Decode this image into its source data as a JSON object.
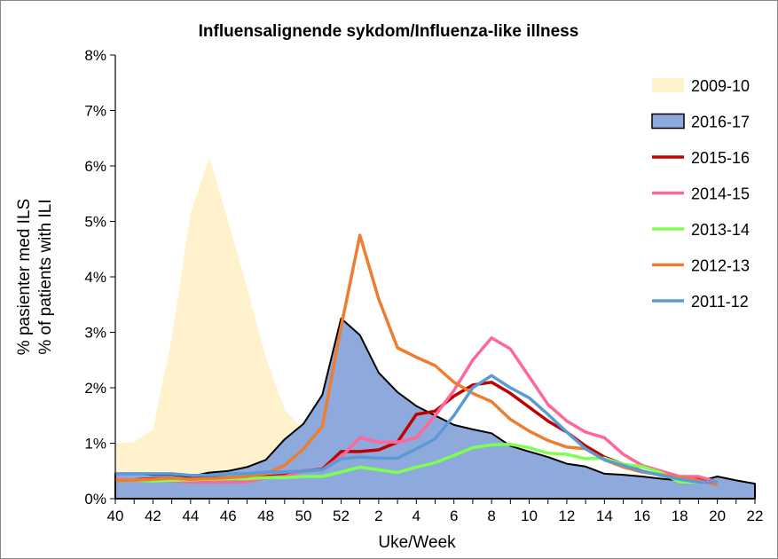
{
  "chart_data": {
    "type": "area+line",
    "title": "Influensalignende sykdom/Influenza-like illness",
    "xlabel": "Uke/Week",
    "ylabel": [
      "% pasienter med ILS",
      "% of patients with ILI"
    ],
    "weeks": [
      40,
      41,
      42,
      43,
      44,
      45,
      46,
      47,
      48,
      49,
      50,
      51,
      52,
      1,
      2,
      3,
      4,
      5,
      6,
      7,
      8,
      9,
      10,
      11,
      12,
      13,
      14,
      15,
      16,
      17,
      18,
      19,
      20,
      21,
      22
    ],
    "xticks": [
      "40",
      "42",
      "44",
      "46",
      "48",
      "50",
      "52",
      "2",
      "4",
      "6",
      "8",
      "10",
      "12",
      "14",
      "16",
      "18",
      "20",
      "22"
    ],
    "yticks": [
      "0%",
      "1%",
      "2%",
      "3%",
      "4%",
      "5%",
      "6%",
      "7%",
      "8%"
    ],
    "ylim": [
      0,
      8
    ],
    "grid": false,
    "legend": "right",
    "series": [
      {
        "name": "2009-10",
        "style": "area",
        "color": "#FFF2CC",
        "values": [
          1.0,
          1.02,
          1.25,
          2.9,
          5.15,
          6.15,
          5.0,
          3.8,
          2.55,
          1.6,
          1.25
        ]
      },
      {
        "name": "2016-17",
        "style": "area-outlined",
        "color": "#8EA9DB",
        "values": [
          0.45,
          0.45,
          0.43,
          0.43,
          0.4,
          0.47,
          0.5,
          0.57,
          0.7,
          1.07,
          1.35,
          1.87,
          3.25,
          2.95,
          2.27,
          1.92,
          1.67,
          1.5,
          1.33,
          1.25,
          1.18,
          0.95,
          0.85,
          0.75,
          0.63,
          0.58,
          0.45,
          0.43,
          0.4,
          0.36,
          0.33,
          0.31,
          0.4,
          0.33,
          0.27
        ]
      },
      {
        "name": "2015-16",
        "style": "line",
        "color": "#C00000",
        "values": [
          0.33,
          0.34,
          0.36,
          0.37,
          0.36,
          0.37,
          0.38,
          0.39,
          0.4,
          0.42,
          0.5,
          0.53,
          0.85,
          0.85,
          0.88,
          1.02,
          1.52,
          1.58,
          1.85,
          2.05,
          2.1,
          1.9,
          1.65,
          1.4,
          1.2,
          0.95,
          0.75,
          0.62,
          0.5,
          0.42,
          0.38,
          0.35,
          0.3
        ]
      },
      {
        "name": "2014-15",
        "style": "line",
        "color": "#FF6699",
        "values": [
          0.35,
          0.34,
          0.33,
          0.32,
          0.3,
          0.3,
          0.3,
          0.3,
          0.38,
          0.4,
          0.5,
          0.52,
          0.75,
          1.1,
          1.02,
          1.02,
          1.1,
          1.5,
          1.95,
          2.5,
          2.9,
          2.7,
          2.2,
          1.7,
          1.4,
          1.2,
          1.1,
          0.8,
          0.6,
          0.5,
          0.4,
          0.4,
          0.3
        ]
      },
      {
        "name": "2013-14",
        "style": "line",
        "color": "#7FFF4F",
        "values": [
          0.33,
          0.33,
          0.32,
          0.33,
          0.34,
          0.35,
          0.36,
          0.36,
          0.38,
          0.38,
          0.4,
          0.4,
          0.48,
          0.57,
          0.52,
          0.47,
          0.57,
          0.65,
          0.78,
          0.92,
          0.97,
          0.98,
          0.92,
          0.82,
          0.8,
          0.72,
          0.73,
          0.62,
          0.58,
          0.47,
          0.3,
          0.3,
          0.3
        ]
      },
      {
        "name": "2012-13",
        "style": "line",
        "color": "#ED7D31",
        "values": [
          0.33,
          0.33,
          0.35,
          0.37,
          0.35,
          0.36,
          0.38,
          0.4,
          0.45,
          0.6,
          0.9,
          1.3,
          3.1,
          4.75,
          3.6,
          2.72,
          2.55,
          2.4,
          2.1,
          1.9,
          1.75,
          1.43,
          1.22,
          1.05,
          0.93,
          0.9,
          0.7,
          0.57,
          0.48,
          0.43,
          0.38,
          0.33,
          0.25
        ]
      },
      {
        "name": "2011-12",
        "style": "line",
        "color": "#5B9BD5",
        "values": [
          0.45,
          0.45,
          0.45,
          0.45,
          0.42,
          0.42,
          0.45,
          0.45,
          0.48,
          0.48,
          0.5,
          0.52,
          0.72,
          0.75,
          0.73,
          0.73,
          0.9,
          1.08,
          1.5,
          2.0,
          2.22,
          2.0,
          1.82,
          1.52,
          1.2,
          0.9,
          0.7,
          0.6,
          0.5,
          0.42,
          0.35,
          0.3,
          0.3
        ]
      }
    ],
    "legend_order": [
      "2009-10",
      "2016-17",
      "2015-16",
      "2014-15",
      "2013-14",
      "2012-13",
      "2011-12"
    ]
  }
}
